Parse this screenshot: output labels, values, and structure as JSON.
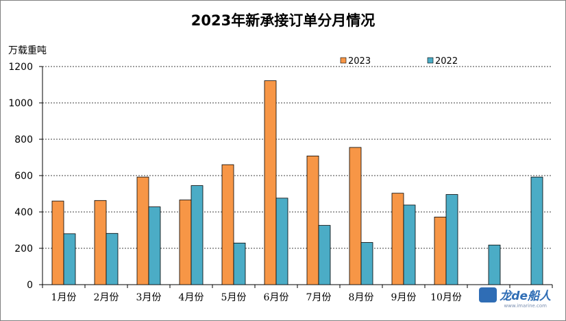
{
  "chart_data": {
    "type": "bar",
    "title": "2023年新承接订单分月情况",
    "ylabel": "万载重吨",
    "ylim": [
      0,
      1200
    ],
    "yticks": [
      0,
      200,
      400,
      600,
      800,
      1000,
      1200
    ],
    "grid": true,
    "legend_position": "top",
    "categories": [
      "1月份",
      "2月份",
      "3月份",
      "4月份",
      "5月份",
      "6月份",
      "7月份",
      "8月份",
      "9月份",
      "10月份",
      "",
      ""
    ],
    "series": [
      {
        "name": "2023",
        "color": "#F79646",
        "values": [
          460,
          463,
          592,
          466,
          660,
          1122,
          708,
          755,
          503,
          372,
          null,
          null
        ]
      },
      {
        "name": "2022",
        "color": "#4BACC6",
        "values": [
          280,
          282,
          428,
          545,
          229,
          476,
          326,
          232,
          438,
          496,
          218,
          592
        ]
      }
    ]
  },
  "watermark": {
    "brand": "龙de船人",
    "url": "www.imarine.com"
  }
}
